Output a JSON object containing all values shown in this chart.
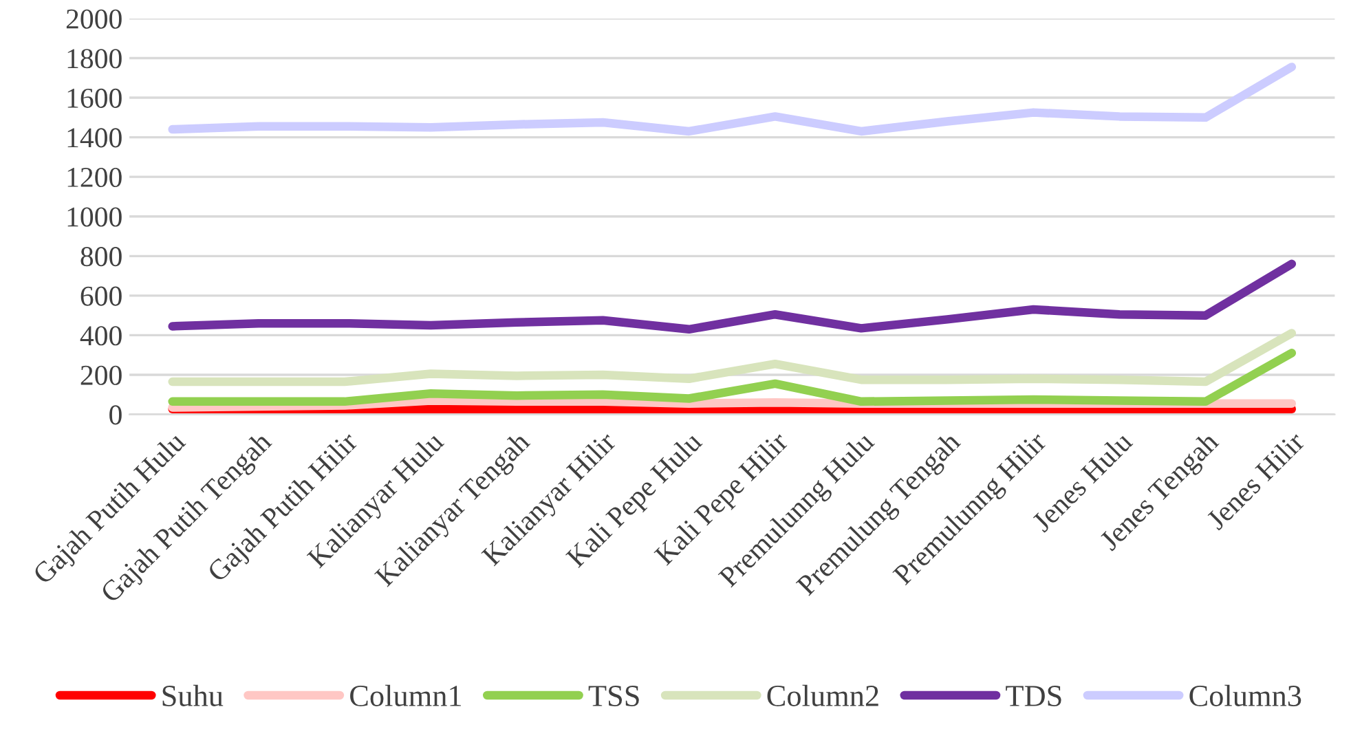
{
  "chart_data": {
    "type": "line",
    "categories": [
      "Gajah Putih Hulu",
      "Gajah Putih Tengah",
      "Gajah Putih Hilir",
      "Kalianyar Hulu",
      "Kalianyar Tengah",
      "Kalianyar Hilir",
      "Kali Pepe Hulu",
      "Kali Pepe Hilir",
      "Premulunng Hulu",
      "Premulung Tengah",
      "Premulunng Hilir",
      "Jenes Hulu",
      "Jenes Tengah",
      "Jenes Hilir"
    ],
    "series": [
      {
        "name": "Suhu",
        "color": "#ff0000",
        "values": [
          27,
          27,
          27,
          27,
          27,
          27,
          27,
          27,
          27,
          27,
          27,
          27,
          27,
          27
        ]
      },
      {
        "name": "Column1",
        "color": "#ffc7c4",
        "values": [
          35,
          40,
          45,
          70,
          65,
          65,
          55,
          60,
          55,
          55,
          55,
          55,
          55,
          55
        ]
      },
      {
        "name": "TSS",
        "color": "#92d050",
        "values": [
          65,
          65,
          65,
          105,
          95,
          100,
          80,
          155,
          65,
          70,
          75,
          70,
          65,
          310
        ]
      },
      {
        "name": "Column2",
        "color": "#d8e4bc",
        "values": [
          165,
          165,
          165,
          205,
          195,
          200,
          180,
          255,
          175,
          175,
          180,
          175,
          165,
          410
        ]
      },
      {
        "name": "TDS",
        "color": "#7030a0",
        "values": [
          445,
          460,
          460,
          450,
          465,
          475,
          430,
          505,
          435,
          480,
          530,
          505,
          500,
          760
        ]
      },
      {
        "name": "Column3",
        "color": "#ccccff",
        "values": [
          1440,
          1455,
          1455,
          1450,
          1465,
          1475,
          1430,
          1505,
          1430,
          1480,
          1525,
          1505,
          1500,
          1755
        ]
      }
    ],
    "ylim": [
      0,
      2000
    ],
    "yticks": [
      0,
      200,
      400,
      600,
      800,
      1000,
      1200,
      1400,
      1600,
      1800,
      2000
    ],
    "grid": "y",
    "legend": "bottom",
    "marker": "none",
    "line_style": "solid"
  }
}
